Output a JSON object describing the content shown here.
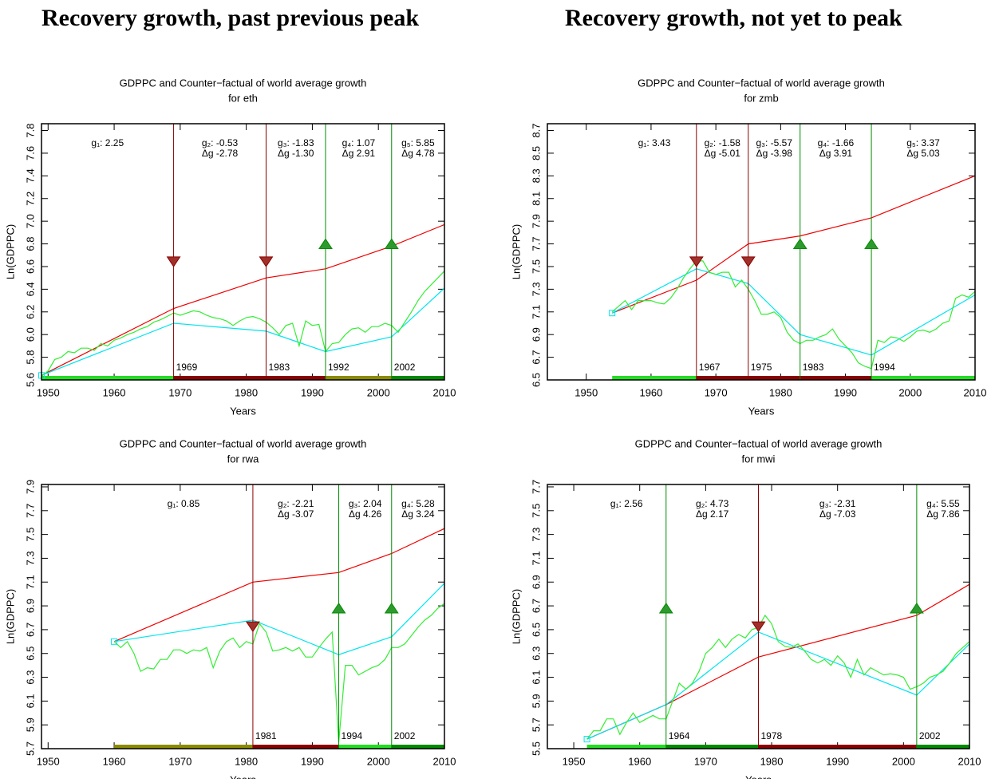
{
  "headings": [
    "Recovery growth, past previous peak",
    "Recovery growth, not yet to peak"
  ],
  "chart_data": [
    {
      "type": "line",
      "title": "GDPPC and Counter−factual of world average growth",
      "subtitle": "for eth",
      "x_label": "Years",
      "y_label": "Ln(GDPPC)",
      "xlim": [
        1949,
        2010
      ],
      "xticks": [
        1950,
        1960,
        1970,
        1980,
        1990,
        2000,
        2010
      ],
      "ylim": [
        5.6,
        7.86
      ],
      "yticks": [
        5.6,
        5.8,
        {
          "value": 6,
          "label": "6.0"
        },
        6.2,
        6.4,
        6.6,
        6.8,
        {
          "value": 7,
          "label": "7.0"
        },
        7.2,
        7.4,
        7.6,
        7.8
      ],
      "series": [
        {
          "color": "#ee0000",
          "x": [
            1949,
            1969,
            1983,
            1992,
            2002,
            2010
          ],
          "values": [
            5.64,
            6.23,
            6.5,
            6.58,
            6.78,
            6.97
          ]
        },
        {
          "color": "#00e5ee",
          "marker_first": true,
          "x": [
            1949,
            1969,
            1983,
            1992,
            2002,
            2010
          ],
          "values": [
            5.64,
            6.1,
            6.03,
            5.85,
            5.98,
            6.41
          ]
        },
        {
          "color": "#33ee33",
          "x": [
            1949,
            1950,
            1951,
            1952,
            1953,
            1954,
            1955,
            1956,
            1957,
            1958,
            1959,
            1960,
            1961,
            1962,
            1963,
            1964,
            1965,
            1966,
            1967,
            1968,
            1969,
            1970,
            1971,
            1972,
            1973,
            1974,
            1975,
            1976,
            1977,
            1978,
            1979,
            1980,
            1981,
            1982,
            1983,
            1984,
            1985,
            1986,
            1987,
            1988,
            1989,
            1990,
            1991,
            1992,
            1993,
            1994,
            1995,
            1996,
            1997,
            1998,
            1999,
            2000,
            2001,
            2002,
            2003,
            2004,
            2005,
            2006,
            2007,
            2008,
            2009,
            2010
          ],
          "values": [
            5.63,
            5.68,
            5.78,
            5.8,
            5.85,
            5.84,
            5.88,
            5.88,
            5.86,
            5.92,
            5.9,
            5.95,
            5.97,
            6.0,
            6.02,
            6.05,
            6.07,
            6.11,
            6.13,
            6.16,
            6.19,
            6.17,
            6.19,
            6.21,
            6.2,
            6.17,
            6.15,
            6.14,
            6.12,
            6.08,
            6.12,
            6.15,
            6.16,
            6.14,
            6.11,
            6.06,
            6.0,
            6.08,
            6.1,
            5.9,
            6.12,
            6.08,
            6.09,
            5.85,
            5.92,
            5.93,
            6.0,
            6.05,
            6.06,
            6.02,
            6.07,
            6.07,
            6.1,
            6.08,
            6.02,
            6.11,
            6.2,
            6.3,
            6.38,
            6.44,
            6.5,
            6.56
          ]
        }
      ],
      "breaks": [
        {
          "year": 1969,
          "direction": "down",
          "color": "#8b0000"
        },
        {
          "year": 1983,
          "direction": "down",
          "color": "#8b0000"
        },
        {
          "year": 1992,
          "direction": "up",
          "color": "#008b00"
        },
        {
          "year": 2002,
          "direction": "up",
          "color": "#008b00"
        }
      ],
      "regimes": [
        {
          "g_text": "g₁: 2.25",
          "color": "#22dd22",
          "start": 1949,
          "end": 1969
        },
        {
          "g_text": "g₂: -0.53",
          "dg_text": "Δg -2.78",
          "color": "#8b0000",
          "start": 1969,
          "end": 1983
        },
        {
          "g_text": "g₃: -1.83",
          "dg_text": "Δg -1.30",
          "color": "#8b0000",
          "start": 1983,
          "end": 1992
        },
        {
          "g_text": "g₄: 1.07",
          "dg_text": "Δg 2.91",
          "color": "#8b8b00",
          "start": 1992,
          "end": 2002
        },
        {
          "g_text": "g₅: 5.85",
          "dg_text": "Δg 4.78",
          "color": "#008b00",
          "start": 2002,
          "end": 2010
        }
      ]
    },
    {
      "type": "line",
      "title": "GDPPC and Counter−factual of world average growth",
      "subtitle": "for zmb",
      "x_label": "Years",
      "y_label": "Ln(GDPPC)",
      "xlim": [
        1944,
        2010
      ],
      "xticks": [
        1950,
        1960,
        1970,
        1980,
        1990,
        2000,
        2010
      ],
      "ylim": [
        6.5,
        8.76
      ],
      "yticks": [
        6.5,
        6.7,
        6.9,
        7.1,
        7.3,
        7.5,
        7.7,
        7.9,
        8.1,
        8.3,
        8.5,
        8.7
      ],
      "series": [
        {
          "color": "#ee0000",
          "x": [
            1954,
            1967,
            1975,
            1983,
            1994,
            2010
          ],
          "values": [
            7.09,
            7.38,
            7.7,
            7.77,
            7.93,
            8.3
          ]
        },
        {
          "color": "#00e5ee",
          "marker_first": true,
          "x": [
            1954,
            1967,
            1975,
            1983,
            1994,
            2010
          ],
          "values": [
            7.09,
            7.48,
            7.35,
            6.9,
            6.72,
            7.25
          ]
        },
        {
          "color": "#33ee33",
          "x": [
            1954,
            1955,
            1956,
            1957,
            1958,
            1959,
            1960,
            1961,
            1962,
            1963,
            1964,
            1965,
            1966,
            1967,
            1968,
            1969,
            1970,
            1971,
            1972,
            1973,
            1974,
            1975,
            1976,
            1977,
            1978,
            1979,
            1980,
            1981,
            1982,
            1983,
            1984,
            1985,
            1986,
            1987,
            1988,
            1989,
            1990,
            1991,
            1992,
            1993,
            1994,
            1995,
            1996,
            1997,
            1998,
            1999,
            2000,
            2001,
            2002,
            2003,
            2004,
            2005,
            2006,
            2007,
            2008,
            2009,
            2010
          ],
          "values": [
            7.1,
            7.15,
            7.2,
            7.12,
            7.2,
            7.2,
            7.2,
            7.18,
            7.17,
            7.22,
            7.3,
            7.4,
            7.48,
            7.55,
            7.55,
            7.45,
            7.43,
            7.45,
            7.45,
            7.32,
            7.38,
            7.3,
            7.2,
            7.08,
            7.08,
            7.1,
            7.05,
            6.92,
            6.85,
            6.82,
            6.85,
            6.85,
            6.88,
            6.9,
            6.95,
            6.86,
            6.8,
            6.74,
            6.65,
            6.62,
            6.6,
            6.85,
            6.83,
            6.88,
            6.87,
            6.84,
            6.88,
            6.93,
            6.94,
            6.92,
            6.95,
            7.0,
            7.02,
            7.22,
            7.25,
            7.23,
            7.28
          ]
        }
      ],
      "breaks": [
        {
          "year": 1967,
          "direction": "down",
          "color": "#8b0000"
        },
        {
          "year": 1975,
          "direction": "down",
          "color": "#8b0000"
        },
        {
          "year": 1983,
          "direction": "up",
          "color": "#008b00"
        },
        {
          "year": 1994,
          "direction": "up",
          "color": "#008b00"
        }
      ],
      "regimes": [
        {
          "g_text": "g₁: 3.43",
          "color": "#22dd22",
          "start": 1954,
          "end": 1967
        },
        {
          "g_text": "g₂: -1.58",
          "dg_text": "Δg -5.01",
          "color": "#8b0000",
          "start": 1967,
          "end": 1975
        },
        {
          "g_text": "g₃: -5.57",
          "dg_text": "Δg -3.98",
          "color": "#8b0000",
          "start": 1975,
          "end": 1983
        },
        {
          "g_text": "g₄: -1.66",
          "dg_text": "Δg 3.91",
          "color": "#8b0000",
          "start": 1983,
          "end": 1994
        },
        {
          "g_text": "g₅: 3.37",
          "dg_text": "Δg 5.03",
          "color": "#22dd22",
          "start": 1994,
          "end": 2010
        }
      ]
    },
    {
      "type": "line",
      "title": "GDPPC and Counter−factual of world average growth",
      "subtitle": "for rwa",
      "x_label": "Years",
      "y_label": "Ln(GDPPC)",
      "xlim": [
        1949,
        2010
      ],
      "xticks": [
        1950,
        1960,
        1970,
        1980,
        1990,
        2000,
        2010
      ],
      "ylim": [
        5.7,
        7.92
      ],
      "yticks": [
        5.7,
        5.9,
        6.1,
        6.3,
        6.5,
        6.7,
        6.9,
        7.1,
        7.3,
        7.5,
        7.7,
        7.9
      ],
      "series": [
        {
          "color": "#ee0000",
          "x": [
            1960,
            1981,
            1994,
            2002,
            2010
          ],
          "values": [
            6.6,
            7.1,
            7.18,
            7.34,
            7.55
          ]
        },
        {
          "color": "#00e5ee",
          "marker_first": true,
          "x": [
            1960,
            1981,
            1994,
            2002,
            2010
          ],
          "values": [
            6.6,
            6.78,
            6.49,
            6.64,
            7.09
          ]
        },
        {
          "color": "#33ee33",
          "x": [
            1960,
            1961,
            1962,
            1963,
            1964,
            1965,
            1966,
            1967,
            1968,
            1969,
            1970,
            1971,
            1972,
            1973,
            1974,
            1975,
            1976,
            1977,
            1978,
            1979,
            1980,
            1981,
            1982,
            1983,
            1984,
            1985,
            1986,
            1987,
            1988,
            1989,
            1990,
            1991,
            1992,
            1993,
            1994,
            1995,
            1996,
            1997,
            1998,
            1999,
            2000,
            2001,
            2002,
            2003,
            2004,
            2005,
            2006,
            2007,
            2008,
            2009,
            2010
          ],
          "values": [
            6.6,
            6.55,
            6.6,
            6.5,
            6.35,
            6.38,
            6.37,
            6.45,
            6.45,
            6.53,
            6.53,
            6.5,
            6.53,
            6.52,
            6.55,
            6.38,
            6.52,
            6.6,
            6.63,
            6.55,
            6.6,
            6.58,
            6.75,
            6.68,
            6.52,
            6.53,
            6.55,
            6.52,
            6.55,
            6.47,
            6.47,
            6.55,
            6.62,
            6.68,
            5.75,
            6.4,
            6.4,
            6.32,
            6.35,
            6.38,
            6.4,
            6.45,
            6.55,
            6.55,
            6.58,
            6.65,
            6.72,
            6.78,
            6.82,
            6.88,
            6.92
          ]
        }
      ],
      "breaks": [
        {
          "year": 1981,
          "direction": "down",
          "color": "#8b0000"
        },
        {
          "year": 1994,
          "direction": "up",
          "color": "#008b00"
        },
        {
          "year": 2002,
          "direction": "up",
          "color": "#008b00"
        }
      ],
      "regimes": [
        {
          "g_text": "g₁: 0.85",
          "color": "#8b8b00",
          "start": 1960,
          "end": 1981
        },
        {
          "g_text": "g₂: -2.21",
          "dg_text": "Δg -3.07",
          "color": "#8b0000",
          "start": 1981,
          "end": 1994
        },
        {
          "g_text": "g₃: 2.04",
          "dg_text": "Δg 4.26",
          "color": "#22dd22",
          "start": 1994,
          "end": 2002
        },
        {
          "g_text": "g₄: 5.28",
          "dg_text": "Δg 3.24",
          "color": "#008b00",
          "start": 2002,
          "end": 2010
        }
      ]
    },
    {
      "type": "line",
      "title": "GDPPC and Counter−factual of world average growth",
      "subtitle": "for mwi",
      "x_label": "Years",
      "y_label": "Ln(GDPPC)",
      "xlim": [
        1946,
        2010
      ],
      "xticks": [
        1950,
        1960,
        1970,
        1980,
        1990,
        2000,
        2010
      ],
      "ylim": [
        5.5,
        7.72
      ],
      "yticks": [
        5.5,
        5.7,
        5.9,
        6.1,
        6.3,
        6.5,
        6.7,
        6.9,
        7.1,
        7.3,
        7.5,
        7.7
      ],
      "series": [
        {
          "color": "#ee0000",
          "x": [
            1952,
            1964,
            1978,
            2002,
            2010
          ],
          "values": [
            5.58,
            5.87,
            6.27,
            6.62,
            6.88
          ]
        },
        {
          "color": "#00e5ee",
          "marker_first": true,
          "x": [
            1952,
            1964,
            1978,
            2002,
            2010
          ],
          "values": [
            5.58,
            5.87,
            6.48,
            5.95,
            6.38
          ]
        },
        {
          "color": "#33ee33",
          "x": [
            1952,
            1953,
            1954,
            1955,
            1956,
            1957,
            1958,
            1959,
            1960,
            1961,
            1962,
            1963,
            1964,
            1965,
            1966,
            1967,
            1968,
            1969,
            1970,
            1971,
            1972,
            1973,
            1974,
            1975,
            1976,
            1977,
            1978,
            1979,
            1980,
            1981,
            1982,
            1983,
            1984,
            1985,
            1986,
            1987,
            1988,
            1989,
            1990,
            1991,
            1992,
            1993,
            1994,
            1995,
            1996,
            1997,
            1998,
            1999,
            2000,
            2001,
            2002,
            2003,
            2004,
            2005,
            2006,
            2007,
            2008,
            2009,
            2010
          ],
          "values": [
            5.58,
            5.65,
            5.65,
            5.75,
            5.75,
            5.62,
            5.72,
            5.8,
            5.72,
            5.75,
            5.78,
            5.75,
            5.75,
            5.9,
            6.05,
            6.0,
            6.05,
            6.15,
            6.3,
            6.35,
            6.42,
            6.35,
            6.42,
            6.46,
            6.43,
            6.5,
            6.52,
            6.62,
            6.55,
            6.4,
            6.36,
            6.35,
            6.38,
            6.32,
            6.25,
            6.22,
            6.25,
            6.2,
            6.28,
            6.22,
            6.1,
            6.25,
            6.12,
            6.18,
            6.15,
            6.12,
            6.13,
            6.12,
            6.1,
            6.0,
            6.02,
            6.05,
            6.1,
            6.12,
            6.15,
            6.22,
            6.3,
            6.35,
            6.4
          ]
        }
      ],
      "breaks": [
        {
          "year": 1964,
          "direction": "up",
          "color": "#008b00"
        },
        {
          "year": 1978,
          "direction": "down",
          "color": "#8b0000"
        },
        {
          "year": 2002,
          "direction": "up",
          "color": "#008b00"
        }
      ],
      "regimes": [
        {
          "g_text": "g₁: 2.56",
          "color": "#22dd22",
          "start": 1952,
          "end": 1964
        },
        {
          "g_text": "g₂: 4.73",
          "dg_text": "Δg 2.17",
          "color": "#008b00",
          "start": 1964,
          "end": 1978
        },
        {
          "g_text": "g₃: -2.31",
          "dg_text": "Δg -7.03",
          "color": "#8b0000",
          "start": 1978,
          "end": 2002
        },
        {
          "g_text": "g₄: 5.55",
          "dg_text": "Δg 7.86",
          "color": "#008b00",
          "start": 2002,
          "end": 2010
        }
      ]
    }
  ]
}
